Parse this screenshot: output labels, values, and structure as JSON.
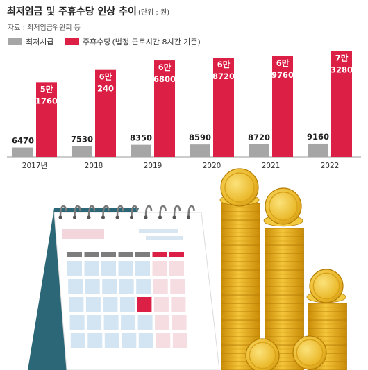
{
  "header": {
    "title": "최저임금 및 주휴수당 인상 추이",
    "unit": "(단위 : 원)",
    "source": "자료 : 최저임금위원회 등"
  },
  "legend": {
    "items": [
      {
        "label": "최저시급",
        "color": "#a6a6a6"
      },
      {
        "label": "주휴수당",
        "note": "(법정 근로시간 8시간 기준)",
        "color": "#db1f45"
      }
    ]
  },
  "chart_data": {
    "type": "bar",
    "title": "최저임금 및 주휴수당 인상 추이",
    "unit": "(단위 : 원)",
    "categories": [
      "2017년",
      "2018",
      "2019",
      "2020",
      "2021",
      "2022"
    ],
    "series": [
      {
        "name": "최저시급",
        "color": "#a6a6a6",
        "values": [
          6470,
          7530,
          8350,
          8590,
          8720,
          9160
        ],
        "labels": [
          [
            "6470"
          ],
          [
            "7530"
          ],
          [
            "8350"
          ],
          [
            "8590"
          ],
          [
            "8720"
          ],
          [
            "9160"
          ]
        ]
      },
      {
        "name": "주휴수당",
        "color": "#db1f45",
        "values": [
          51760,
          60240,
          66800,
          68720,
          69760,
          73280
        ],
        "labels": [
          [
            "5만",
            "1760"
          ],
          [
            "6만",
            "240"
          ],
          [
            "6만",
            "6800"
          ],
          [
            "6만",
            "8720"
          ],
          [
            "6만",
            "9760"
          ],
          [
            "7만",
            "3280"
          ]
        ]
      }
    ]
  },
  "illustration": {
    "calendar": {
      "ring_count": 10,
      "highlight_color": "#db1f45"
    },
    "coins": {
      "color": "#e6b21d"
    }
  }
}
